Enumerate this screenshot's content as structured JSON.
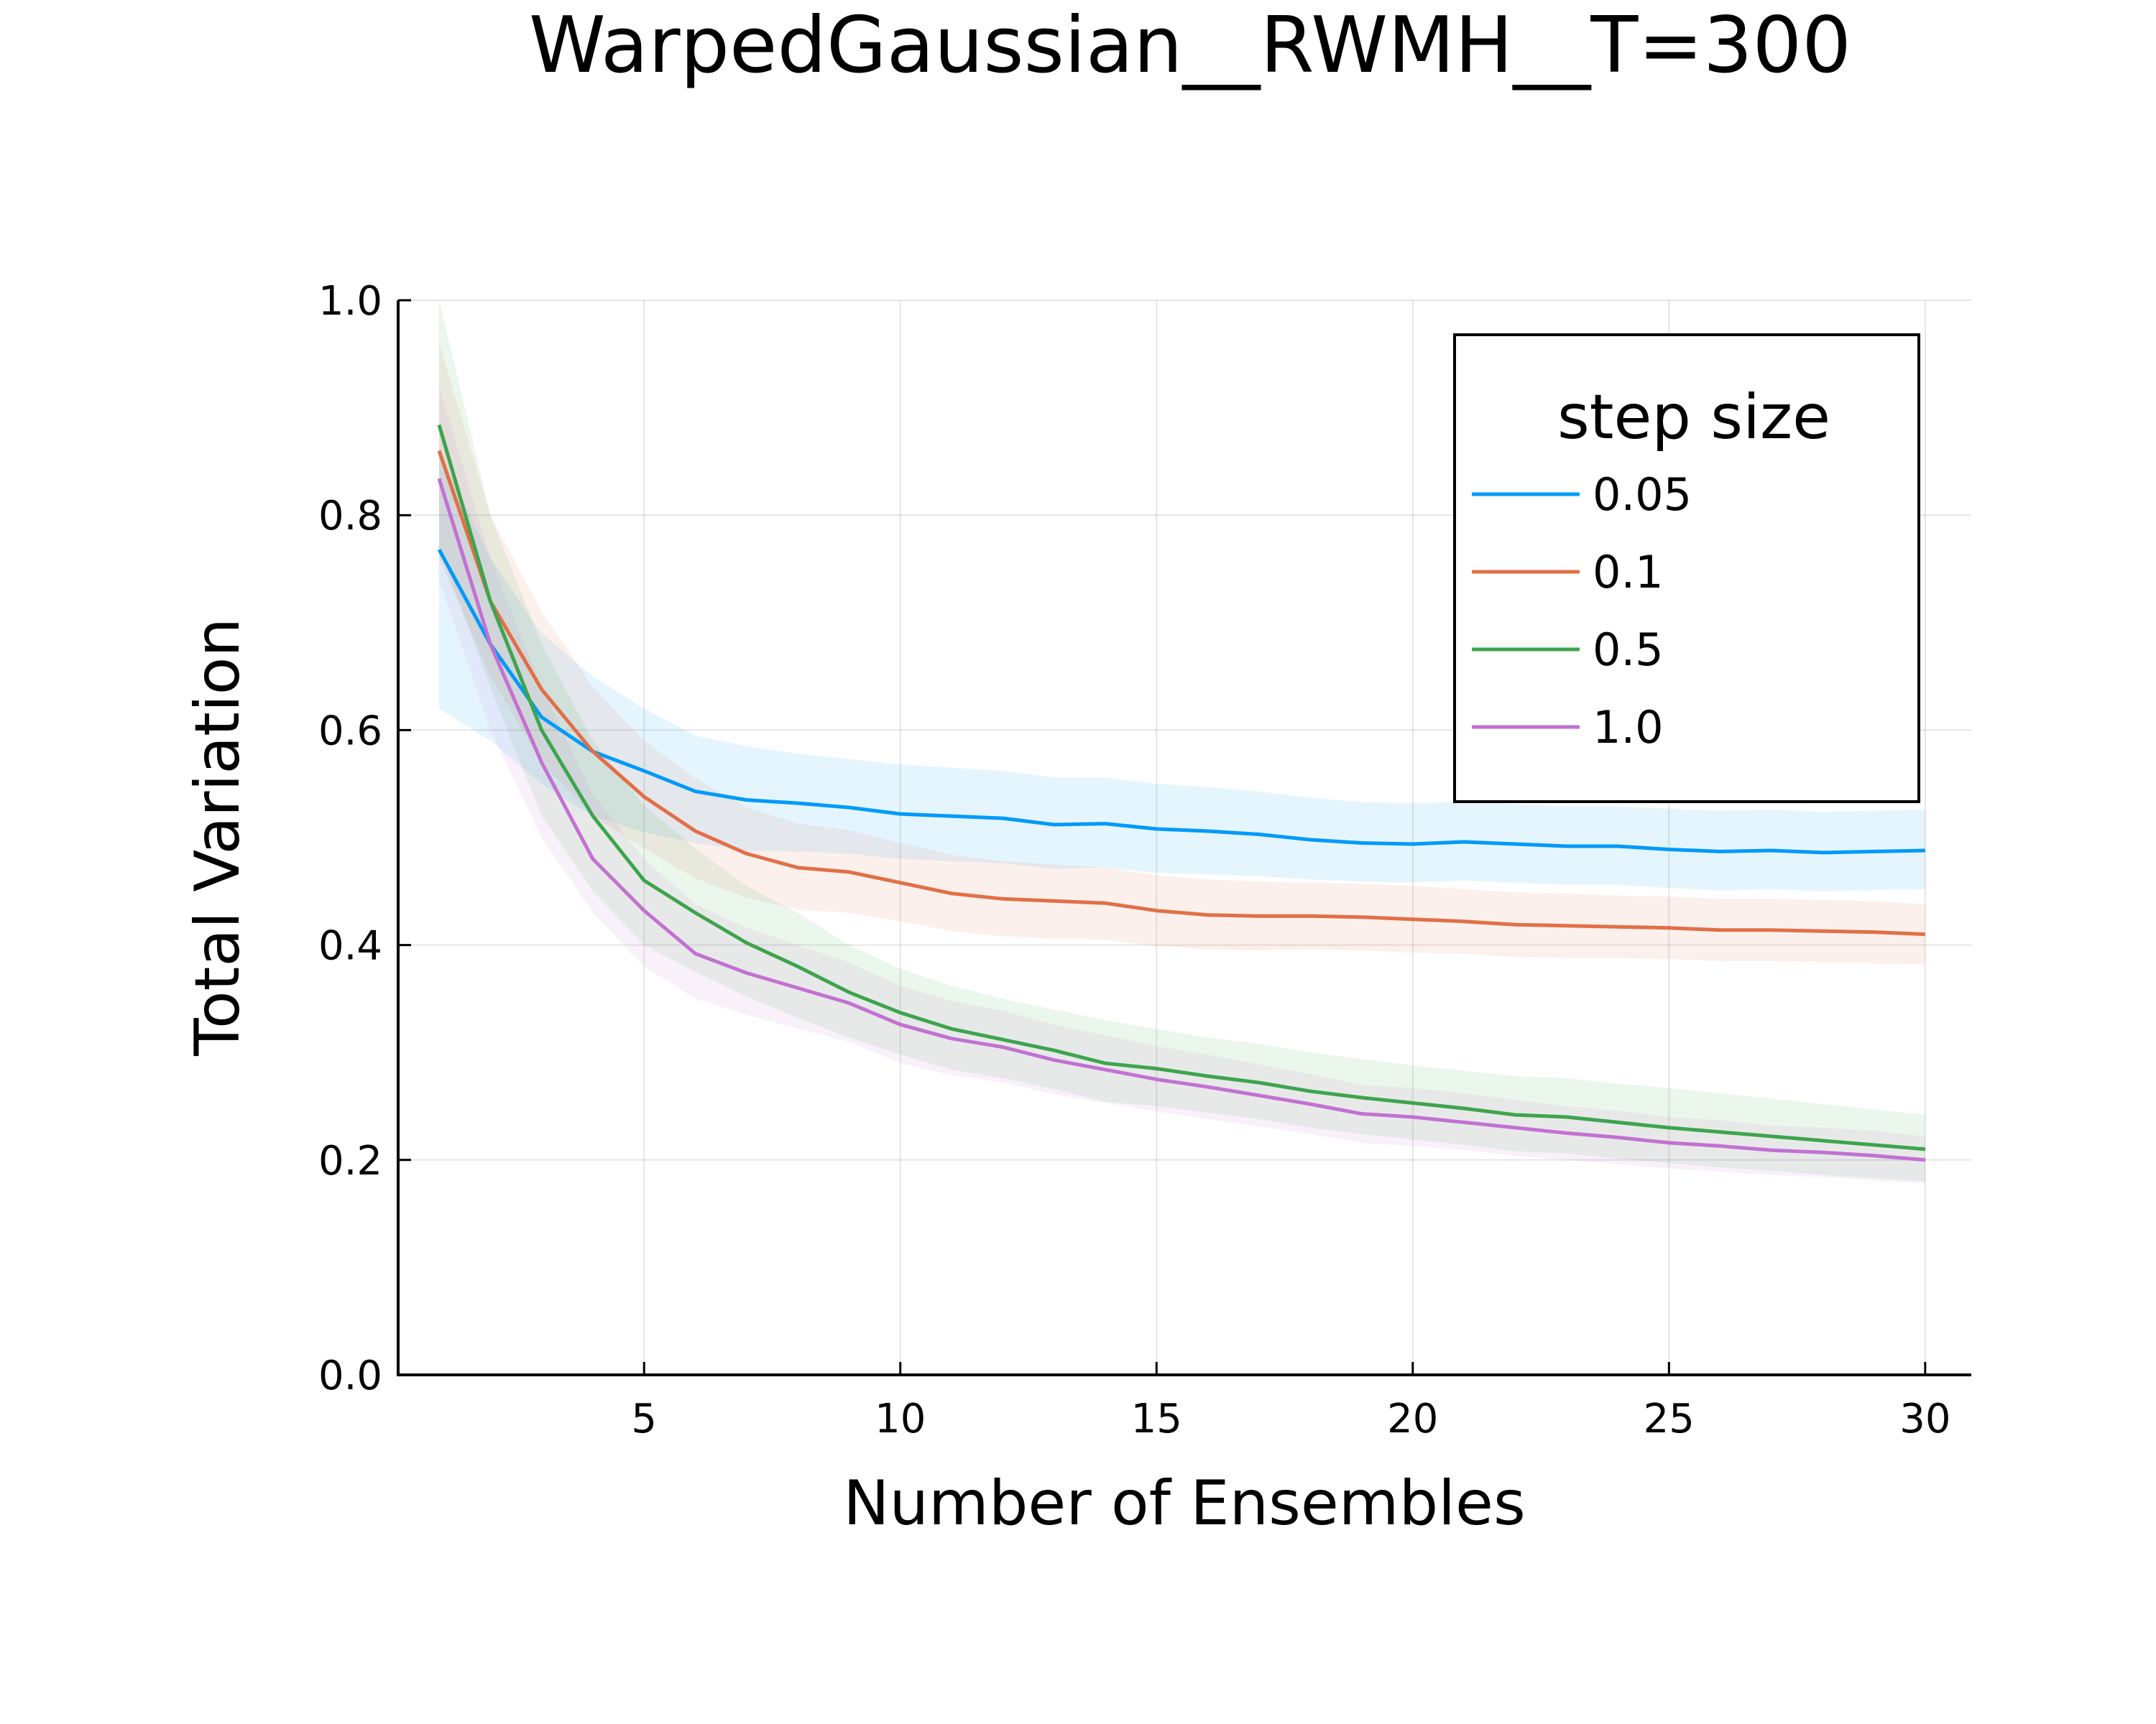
{
  "chart_data": {
    "type": "line",
    "title": "WarpedGaussian__RWMH__T=300",
    "xlabel": "Number of Ensembles",
    "ylabel": "Total Variation",
    "xlim": [
      0.2,
      30.9
    ],
    "ylim": [
      0.0,
      1.0
    ],
    "xticks": [
      5,
      10,
      15,
      20,
      25,
      30
    ],
    "yticks": [
      0.0,
      0.2,
      0.4,
      0.6,
      0.8,
      1.0
    ],
    "xtick_labels": [
      "5",
      "10",
      "15",
      "20",
      "25",
      "30"
    ],
    "ytick_labels": [
      "0.0",
      "0.2",
      "0.4",
      "0.6",
      "0.8",
      "1.0"
    ],
    "grid": true,
    "legend": {
      "title": "step size",
      "position": "top-right"
    },
    "x": [
      1,
      2,
      3,
      4,
      5,
      6,
      7,
      8,
      9,
      10,
      11,
      12,
      13,
      14,
      15,
      16,
      17,
      18,
      19,
      20,
      21,
      22,
      23,
      24,
      25,
      26,
      27,
      28,
      29,
      30
    ],
    "series": [
      {
        "name": "0.05",
        "color": "#009af9",
        "values": [
          0.768,
          0.68,
          0.612,
          0.58,
          0.562,
          0.543,
          0.535,
          0.532,
          0.528,
          0.522,
          0.52,
          0.518,
          0.512,
          0.513,
          0.508,
          0.506,
          0.503,
          0.498,
          0.495,
          0.494,
          0.496,
          0.494,
          0.492,
          0.492,
          0.489,
          0.487,
          0.488,
          0.486,
          0.487,
          0.488
        ],
        "band_upper": [
          0.86,
          0.76,
          0.69,
          0.65,
          0.62,
          0.595,
          0.585,
          0.578,
          0.573,
          0.568,
          0.565,
          0.562,
          0.556,
          0.556,
          0.55,
          0.547,
          0.543,
          0.537,
          0.533,
          0.532,
          0.533,
          0.531,
          0.529,
          0.529,
          0.527,
          0.525,
          0.526,
          0.524,
          0.525,
          0.526
        ],
        "band_lower": [
          0.62,
          0.59,
          0.55,
          0.52,
          0.505,
          0.495,
          0.488,
          0.487,
          0.485,
          0.48,
          0.478,
          0.476,
          0.471,
          0.472,
          0.467,
          0.466,
          0.464,
          0.461,
          0.459,
          0.458,
          0.46,
          0.458,
          0.456,
          0.456,
          0.453,
          0.451,
          0.452,
          0.45,
          0.451,
          0.452
        ]
      },
      {
        "name": "0.1",
        "color": "#e26f46",
        "values": [
          0.86,
          0.72,
          0.638,
          0.58,
          0.538,
          0.506,
          0.485,
          0.472,
          0.468,
          0.458,
          0.448,
          0.443,
          0.441,
          0.439,
          0.432,
          0.428,
          0.427,
          0.427,
          0.426,
          0.424,
          0.422,
          0.419,
          0.418,
          0.417,
          0.416,
          0.414,
          0.414,
          0.413,
          0.412,
          0.41
        ],
        "band_upper": [
          0.96,
          0.8,
          0.71,
          0.64,
          0.59,
          0.555,
          0.528,
          0.513,
          0.507,
          0.495,
          0.484,
          0.478,
          0.475,
          0.472,
          0.465,
          0.461,
          0.459,
          0.458,
          0.457,
          0.455,
          0.452,
          0.449,
          0.448,
          0.446,
          0.445,
          0.443,
          0.443,
          0.442,
          0.441,
          0.438
        ],
        "band_lower": [
          0.76,
          0.65,
          0.57,
          0.52,
          0.49,
          0.462,
          0.444,
          0.433,
          0.43,
          0.422,
          0.413,
          0.408,
          0.406,
          0.405,
          0.399,
          0.396,
          0.395,
          0.396,
          0.395,
          0.393,
          0.392,
          0.389,
          0.388,
          0.388,
          0.387,
          0.385,
          0.385,
          0.384,
          0.383,
          0.382
        ]
      },
      {
        "name": "0.5",
        "color": "#3da44d",
        "values": [
          0.884,
          0.72,
          0.6,
          0.52,
          0.46,
          0.43,
          0.402,
          0.38,
          0.356,
          0.337,
          0.322,
          0.312,
          0.302,
          0.29,
          0.285,
          0.278,
          0.272,
          0.264,
          0.258,
          0.253,
          0.248,
          0.242,
          0.24,
          0.235,
          0.23,
          0.226,
          0.222,
          0.218,
          0.214,
          0.21
        ],
        "band_upper": [
          1.0,
          0.8,
          0.68,
          0.59,
          0.53,
          0.49,
          0.455,
          0.43,
          0.4,
          0.378,
          0.362,
          0.35,
          0.34,
          0.33,
          0.322,
          0.314,
          0.308,
          0.3,
          0.294,
          0.288,
          0.283,
          0.278,
          0.276,
          0.271,
          0.267,
          0.262,
          0.257,
          0.252,
          0.247,
          0.242
        ],
        "band_lower": [
          0.77,
          0.64,
          0.52,
          0.45,
          0.4,
          0.375,
          0.352,
          0.332,
          0.314,
          0.298,
          0.284,
          0.276,
          0.266,
          0.254,
          0.25,
          0.244,
          0.238,
          0.23,
          0.224,
          0.219,
          0.214,
          0.208,
          0.206,
          0.201,
          0.197,
          0.193,
          0.19,
          0.186,
          0.183,
          0.18
        ]
      },
      {
        "name": "1.0",
        "color": "#c271d2",
        "values": [
          0.834,
          0.68,
          0.57,
          0.48,
          0.432,
          0.392,
          0.374,
          0.36,
          0.346,
          0.326,
          0.313,
          0.305,
          0.293,
          0.284,
          0.275,
          0.268,
          0.26,
          0.252,
          0.243,
          0.24,
          0.235,
          0.23,
          0.225,
          0.221,
          0.216,
          0.213,
          0.209,
          0.207,
          0.204,
          0.2
        ],
        "band_upper": [
          0.92,
          0.76,
          0.64,
          0.54,
          0.48,
          0.438,
          0.416,
          0.4,
          0.384,
          0.362,
          0.348,
          0.339,
          0.326,
          0.316,
          0.306,
          0.298,
          0.289,
          0.28,
          0.27,
          0.267,
          0.262,
          0.256,
          0.25,
          0.246,
          0.24,
          0.237,
          0.232,
          0.23,
          0.227,
          0.222
        ],
        "band_lower": [
          0.74,
          0.6,
          0.5,
          0.43,
          0.38,
          0.35,
          0.335,
          0.322,
          0.31,
          0.29,
          0.279,
          0.272,
          0.261,
          0.253,
          0.245,
          0.238,
          0.231,
          0.224,
          0.216,
          0.213,
          0.209,
          0.204,
          0.2,
          0.196,
          0.192,
          0.189,
          0.186,
          0.184,
          0.181,
          0.178
        ]
      }
    ]
  }
}
